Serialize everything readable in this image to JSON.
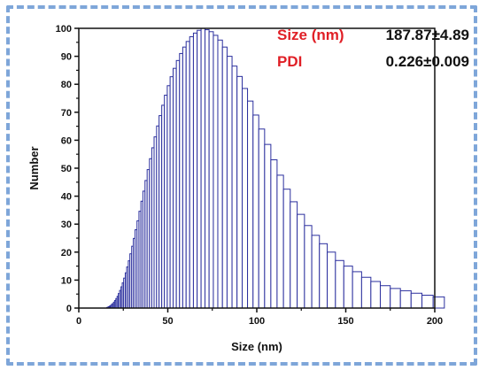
{
  "chart_data": {
    "type": "bar",
    "xlabel": "Size (nm)",
    "ylabel": "Number",
    "xlim": [
      0,
      200
    ],
    "ylim": [
      0,
      100
    ],
    "xticks": [
      0,
      50,
      100,
      150,
      200
    ],
    "yticks": [
      0,
      10,
      20,
      30,
      40,
      50,
      60,
      70,
      80,
      90,
      100
    ],
    "bar_color": "#2b2f9e",
    "grid": false,
    "annotations": [
      {
        "label": "Size (nm)",
        "value": "187.87±4.89"
      },
      {
        "label": "PDI",
        "value": "0.226±0.009"
      }
    ],
    "series": [
      {
        "x": [
          15.1,
          15.6,
          16.1,
          16.6,
          17.2,
          17.7,
          18.3,
          18.9,
          19.5,
          20.1,
          20.8,
          21.5,
          22.2,
          22.9,
          23.7,
          24.4,
          25.2,
          26.1,
          26.9,
          27.8,
          28.7,
          29.7,
          30.6,
          31.6,
          32.7,
          33.8,
          34.9,
          36.0,
          37.2,
          38.4,
          39.7,
          41.0,
          42.3,
          43.7,
          45.1,
          46.6,
          48.1,
          49.7,
          51.3,
          53.0,
          54.8,
          56.6,
          58.4,
          60.3,
          62.3,
          64.4,
          66.5,
          68.7,
          70.9,
          73.2,
          75.6,
          78.1,
          80.7,
          83.3,
          86.1,
          88.9,
          91.8,
          94.8,
          97.9,
          101.1,
          104.4,
          107.9,
          111.4,
          115.0,
          118.8,
          122.7,
          126.8,
          130.9,
          135.2,
          139.6,
          144.2,
          148.9,
          153.8,
          158.9,
          164.1,
          169.4,
          175.0,
          180.7,
          186.7,
          192.8,
          199.1
        ],
        "values": [
          0.0,
          0.2,
          0.3,
          0.5,
          0.7,
          0.9,
          1.3,
          1.6,
          2.1,
          2.7,
          3.4,
          4.2,
          5.2,
          6.3,
          7.6,
          9.0,
          10.7,
          12.6,
          14.7,
          16.9,
          19.4,
          22.1,
          24.9,
          28.0,
          31.2,
          34.6,
          38.2,
          41.8,
          45.6,
          49.5,
          53.4,
          57.3,
          61.2,
          65.1,
          68.8,
          72.5,
          76.1,
          79.5,
          82.7,
          85.7,
          88.5,
          91.0,
          93.3,
          95.3,
          97.0,
          98.3,
          99.3,
          100.0,
          99.5,
          98.8,
          97.5,
          95.8,
          93.3,
          90.0,
          86.5,
          82.8,
          78.5,
          74.0,
          69.0,
          64.0,
          58.5,
          53.0,
          47.5,
          42.5,
          38.0,
          33.5,
          29.5,
          26.0,
          23.0,
          20.0,
          17.0,
          15.0,
          13.0,
          11.0,
          9.5,
          8.0,
          7.0,
          6.2,
          5.3,
          4.6,
          4.0
        ]
      }
    ]
  }
}
